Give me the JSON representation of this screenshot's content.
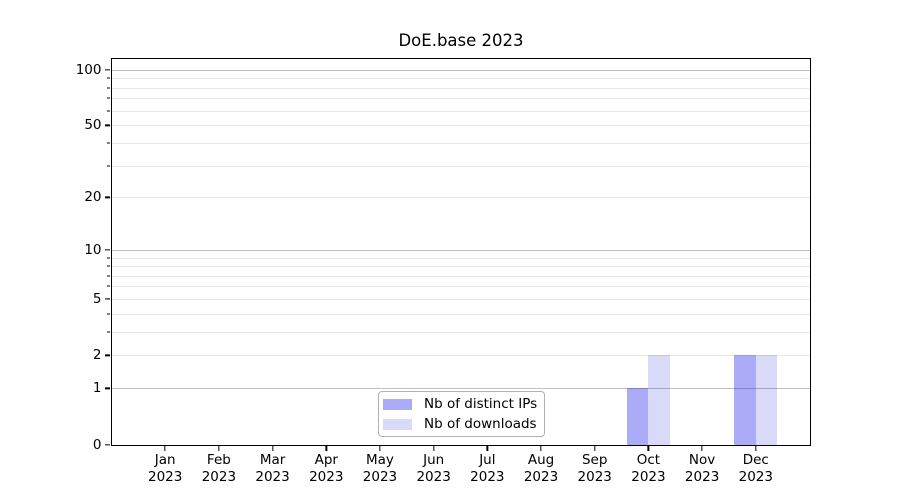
{
  "title": "DoE.base 2023",
  "colors": {
    "background": "#ffffff",
    "axis": "#000000",
    "grid_major": "#c0c0c0",
    "grid_minor": "#e9e9e9",
    "legend_border": "#b0b0b0",
    "bar_distinct_ips": "rgba(0,0,235,0.33)",
    "bar_downloads": "rgba(0,0,210,0.15)"
  },
  "chart_data": {
    "type": "bar",
    "title": "DoE.base 2023",
    "categories": [
      "Jan",
      "Feb",
      "Mar",
      "Apr",
      "May",
      "Jun",
      "Jul",
      "Aug",
      "Sep",
      "Oct",
      "Nov",
      "Dec"
    ],
    "category_year": "2023",
    "series": [
      {
        "name": "Nb of distinct IPs",
        "key": "distinct-ips",
        "color": "rgba(0,0,235,0.33)",
        "values": [
          0,
          0,
          0,
          0,
          0,
          0,
          0,
          0,
          0,
          1,
          0,
          2
        ]
      },
      {
        "name": "Nb of downloads",
        "key": "downloads",
        "color": "rgba(0,0,210,0.15)",
        "values": [
          0,
          0,
          0,
          0,
          0,
          0,
          0,
          0,
          0,
          2,
          0,
          2
        ]
      }
    ],
    "xlabel": "",
    "ylabel": "",
    "yscale": "log1p",
    "ylim": [
      0,
      115
    ],
    "yticks": {
      "values": [
        0,
        1,
        2,
        5,
        10,
        20,
        50,
        100
      ],
      "labels": [
        "0",
        "1",
        "2",
        "5",
        "10",
        "20",
        "50",
        "100"
      ]
    },
    "grid": {
      "major_values": [
        1,
        10,
        100
      ],
      "minor_values": [
        2,
        3,
        4,
        5,
        6,
        7,
        8,
        9,
        20,
        30,
        40,
        50,
        60,
        70,
        80,
        90
      ]
    },
    "bar_width_slots": 0.4,
    "legend_position": "inside lower-center"
  }
}
